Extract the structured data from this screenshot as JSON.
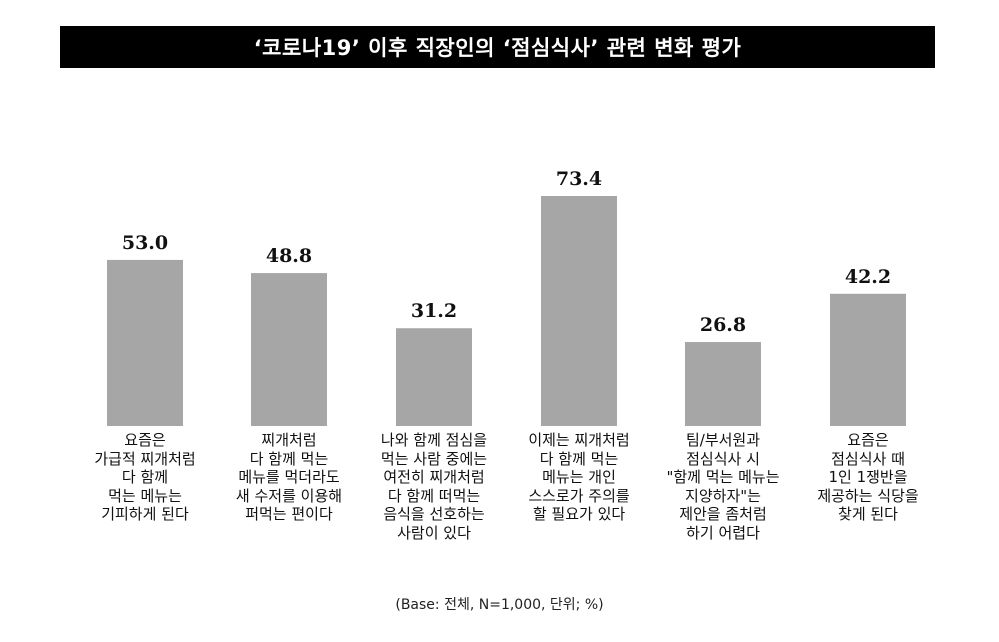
{
  "chart_data": {
    "type": "bar",
    "title": "‘코로나19’ 이후 직장인의 ‘점심식사’ 관련 변화 평가",
    "categories": [
      [
        "요즘은",
        "가급적 찌개처럼",
        "다 함께",
        "먹는 메뉴는",
        "기피하게 된다"
      ],
      [
        "찌개처럼",
        "다 함께 먹는",
        "메뉴를 먹더라도",
        "새 수저를 이용해",
        "퍼먹는 편이다"
      ],
      [
        "나와 함께 점심을",
        "먹는 사람 중에는",
        "여전히 찌개처럼",
        "다 함께 떠먹는",
        "음식을 선호하는",
        "사람이 있다"
      ],
      [
        "이제는 찌개처럼",
        "다 함께 먹는",
        "메뉴는 개인",
        "스스로가 주의를",
        "할 필요가 있다"
      ],
      [
        "팀/부서원과",
        "점심식사 시",
        "\"함께 먹는 메뉴는",
        "지양하자\"는",
        "제안을 좀처럼",
        "하기 어렵다"
      ],
      [
        "요즘은",
        "점심식사 때",
        "1인 1쟁반을",
        "제공하는 식당을",
        "찾게 된다"
      ]
    ],
    "values": [
      53.0,
      48.8,
      31.2,
      73.4,
      26.8,
      42.2
    ],
    "value_labels": [
      "53.0",
      "48.8",
      "31.2",
      "73.4",
      "26.8",
      "42.2"
    ],
    "bar_color": "#a6a6a6",
    "ylim": [
      0,
      73.4
    ],
    "grid": false,
    "legend": "none",
    "footnote": "(Base: 전체, N=1,000, 단위; %)"
  }
}
